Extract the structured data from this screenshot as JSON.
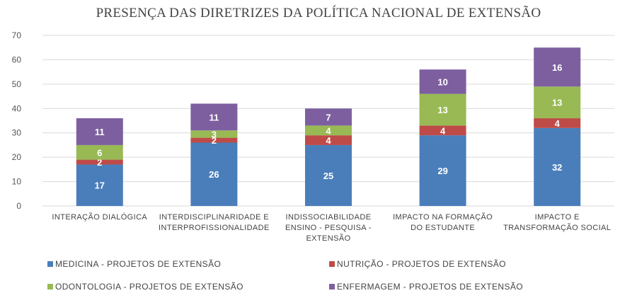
{
  "chart_data": {
    "type": "bar",
    "stacked": true,
    "title": "PRESENÇA DAS DIRETRIZES DA POLÍTICA NACIONAL DE EXTENSÃO",
    "categories": [
      [
        "INTERAÇÃO DIALÓGICA"
      ],
      [
        "INTERDISCIPLINARIDADE E",
        "INTERPROFISSIONALIDADE"
      ],
      [
        "INDISSOCIABILIDADE",
        "ENSINO - PESQUISA -",
        "EXTENSÃO"
      ],
      [
        "IMPACTO NA FORMAÇÃO",
        "DO ESTUDANTE"
      ],
      [
        "IMPACTO E",
        "TRANSFORMAÇÃO SOCIAL"
      ]
    ],
    "series": [
      {
        "name": "MEDICINA - PROJETOS DE EXTENSÃO",
        "color": "#4A7EBB",
        "values": [
          17,
          26,
          25,
          29,
          32
        ]
      },
      {
        "name": "NUTRIÇÃO - PROJETOS DE EXTENSÃO",
        "color": "#BE4B48",
        "values": [
          2,
          2,
          4,
          4,
          4
        ]
      },
      {
        "name": "ODONTOLOGIA - PROJETOS DE EXTENSÃO",
        "color": "#98B954",
        "values": [
          6,
          3,
          4,
          13,
          13
        ]
      },
      {
        "name": "ENFERMAGEM - PROJETOS DE EXTENSÃO",
        "color": "#7D5FA0",
        "values": [
          11,
          11,
          7,
          10,
          16
        ]
      }
    ],
    "ylim": [
      0,
      70
    ],
    "yticks": [
      0,
      10,
      20,
      30,
      40,
      50,
      60,
      70
    ],
    "grid": true,
    "legend": "bottom"
  }
}
